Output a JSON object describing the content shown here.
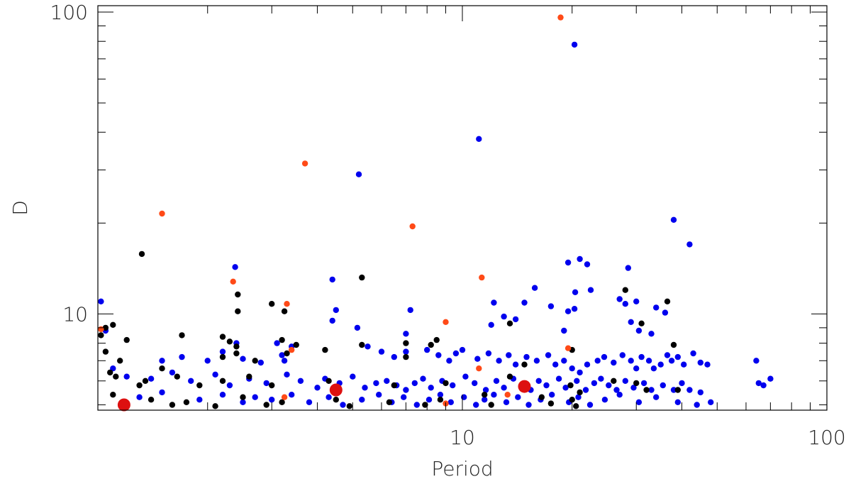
{
  "chart_data": {
    "type": "scatter",
    "title": "",
    "xlabel": "Period",
    "ylabel": "D",
    "xscale": "log",
    "yscale": "log",
    "xlim": [
      1,
      100
    ],
    "ylim": [
      4.8,
      105
    ],
    "x_ticks": [
      {
        "value": 10,
        "label": "10"
      },
      {
        "value": 100,
        "label": "100"
      }
    ],
    "y_ticks": [
      {
        "value": 10,
        "label": "10"
      },
      {
        "value": 100,
        "label": "100"
      }
    ],
    "grid": false,
    "legend": "none",
    "series": [
      {
        "color": "#0000ee",
        "marker_size": "small",
        "points": [
          [
            20.3,
            78.0
          ],
          [
            11.1,
            38.0
          ],
          [
            5.2,
            29.0
          ],
          [
            38.0,
            20.5
          ],
          [
            42.0,
            17.0
          ],
          [
            19.5,
            14.8
          ],
          [
            21.0,
            15.2
          ],
          [
            22.0,
            14.6
          ],
          [
            28.5,
            14.2
          ],
          [
            2.38,
            14.3
          ],
          [
            4.4,
            13.0
          ],
          [
            15.8,
            12.2
          ],
          [
            20.4,
            11.8
          ],
          [
            22.5,
            12.0
          ],
          [
            27.0,
            11.2
          ],
          [
            30.0,
            11.0
          ],
          [
            28.0,
            10.8
          ],
          [
            34.0,
            10.5
          ],
          [
            12.2,
            10.9
          ],
          [
            14.8,
            10.9
          ],
          [
            4.5,
            10.3
          ],
          [
            7.2,
            10.3
          ],
          [
            17.5,
            10.6
          ],
          [
            19.5,
            10.2
          ],
          [
            20.3,
            10.4
          ],
          [
            36.0,
            10.1
          ],
          [
            1.02,
            11.0
          ],
          [
            13.0,
            9.8
          ],
          [
            14.0,
            9.6
          ],
          [
            12.0,
            9.2
          ],
          [
            4.4,
            9.5
          ],
          [
            5.15,
            9.0
          ],
          [
            7.0,
            8.6
          ],
          [
            19.0,
            8.8
          ],
          [
            29.0,
            9.4
          ],
          [
            30.5,
            8.8
          ],
          [
            33.0,
            8.6
          ],
          [
            1.05,
            8.8
          ],
          [
            2.4,
            8.0
          ],
          [
            3.1,
            8.0
          ],
          [
            3.4,
            7.8
          ],
          [
            3.2,
            7.3
          ],
          [
            3.25,
            7.0
          ],
          [
            2.5,
            7.1
          ],
          [
            2.8,
            6.9
          ],
          [
            2.2,
            7.5
          ],
          [
            1.5,
            7.0
          ],
          [
            1.7,
            7.2
          ],
          [
            2.0,
            7.0
          ],
          [
            5.5,
            7.8
          ],
          [
            6.0,
            7.5
          ],
          [
            6.5,
            7.2
          ],
          [
            7.0,
            7.5
          ],
          [
            8.0,
            7.6
          ],
          [
            8.6,
            7.3
          ],
          [
            9.2,
            7.0
          ],
          [
            9.6,
            7.4
          ],
          [
            10.0,
            7.6
          ],
          [
            11.0,
            7.1
          ],
          [
            11.8,
            7.4
          ],
          [
            12.6,
            7.0
          ],
          [
            13.4,
            7.3
          ],
          [
            14.0,
            6.8
          ],
          [
            15.0,
            7.2
          ],
          [
            16.0,
            7.0
          ],
          [
            17.2,
            7.3
          ],
          [
            18.0,
            6.8
          ],
          [
            19.0,
            7.0
          ],
          [
            20.0,
            6.6
          ],
          [
            21.0,
            6.4
          ],
          [
            22.0,
            6.8
          ],
          [
            23.5,
            7.0
          ],
          [
            24.5,
            7.2
          ],
          [
            26.0,
            6.9
          ],
          [
            27.5,
            7.3
          ],
          [
            29.0,
            7.0
          ],
          [
            30.0,
            6.6
          ],
          [
            31.0,
            7.2
          ],
          [
            32.5,
            7.0
          ],
          [
            33.5,
            6.6
          ],
          [
            35.0,
            6.8
          ],
          [
            36.5,
            7.3
          ],
          [
            37.5,
            7.0
          ],
          [
            39.0,
            7.2
          ],
          [
            40.5,
            6.8
          ],
          [
            43.0,
            7.4
          ],
          [
            45.0,
            6.9
          ],
          [
            47.0,
            6.8
          ],
          [
            64.0,
            7.0
          ],
          [
            1.1,
            6.6
          ],
          [
            1.2,
            6.2
          ],
          [
            1.4,
            6.1
          ],
          [
            1.6,
            6.4
          ],
          [
            1.8,
            6.0
          ],
          [
            2.1,
            6.3
          ],
          [
            2.3,
            5.8
          ],
          [
            2.6,
            6.1
          ],
          [
            2.9,
            5.9
          ],
          [
            3.3,
            6.3
          ],
          [
            3.6,
            6.0
          ],
          [
            4.0,
            5.7
          ],
          [
            4.2,
            6.1
          ],
          [
            4.6,
            5.9
          ],
          [
            5.0,
            6.2
          ],
          [
            5.4,
            5.7
          ],
          [
            5.8,
            5.9
          ],
          [
            6.2,
            6.0
          ],
          [
            6.6,
            5.8
          ],
          [
            7.0,
            5.6
          ],
          [
            7.4,
            5.9
          ],
          [
            7.8,
            6.1
          ],
          [
            8.2,
            5.7
          ],
          [
            8.8,
            6.0
          ],
          [
            9.4,
            5.8
          ],
          [
            10.2,
            6.2
          ],
          [
            10.8,
            5.9
          ],
          [
            11.6,
            5.6
          ],
          [
            12.4,
            6.0
          ],
          [
            13.0,
            5.7
          ],
          [
            13.8,
            6.1
          ],
          [
            14.6,
            5.8
          ],
          [
            15.4,
            5.6
          ],
          [
            16.2,
            6.0
          ],
          [
            17.0,
            5.8
          ],
          [
            18.4,
            6.1
          ],
          [
            19.2,
            5.7
          ],
          [
            20.6,
            6.0
          ],
          [
            21.8,
            5.6
          ],
          [
            23.0,
            5.9
          ],
          [
            24.0,
            6.1
          ],
          [
            25.2,
            5.8
          ],
          [
            26.5,
            5.6
          ],
          [
            28.0,
            6.0
          ],
          [
            29.5,
            5.7
          ],
          [
            31.5,
            5.9
          ],
          [
            33.0,
            5.6
          ],
          [
            35.5,
            5.8
          ],
          [
            38.0,
            5.6
          ],
          [
            40.0,
            5.9
          ],
          [
            42.0,
            5.6
          ],
          [
            45.0,
            5.5
          ],
          [
            65.0,
            5.9
          ],
          [
            67.0,
            5.8
          ],
          [
            70.0,
            6.1
          ],
          [
            1.3,
            5.3
          ],
          [
            1.5,
            5.5
          ],
          [
            1.9,
            5.2
          ],
          [
            2.2,
            5.4
          ],
          [
            2.5,
            5.1
          ],
          [
            2.7,
            5.3
          ],
          [
            3.0,
            5.2
          ],
          [
            3.4,
            5.4
          ],
          [
            3.8,
            5.1
          ],
          [
            4.3,
            5.3
          ],
          [
            4.7,
            5.0
          ],
          [
            5.3,
            5.2
          ],
          [
            5.9,
            5.4
          ],
          [
            6.4,
            5.1
          ],
          [
            6.9,
            5.3
          ],
          [
            7.5,
            5.0
          ],
          [
            8.1,
            5.2
          ],
          [
            8.7,
            5.4
          ],
          [
            9.3,
            5.1
          ],
          [
            10.1,
            5.3
          ],
          [
            10.9,
            5.0
          ],
          [
            11.5,
            5.2
          ],
          [
            12.2,
            5.4
          ],
          [
            13.2,
            5.1
          ],
          [
            14.2,
            5.3
          ],
          [
            15.2,
            5.0
          ],
          [
            16.4,
            5.2
          ],
          [
            17.6,
            5.4
          ],
          [
            19.6,
            5.1
          ],
          [
            20.8,
            5.3
          ],
          [
            22.4,
            5.0
          ],
          [
            24.6,
            5.2
          ],
          [
            27.0,
            5.4
          ],
          [
            30.5,
            5.1
          ],
          [
            34.0,
            5.3
          ],
          [
            39.0,
            5.1
          ],
          [
            44.0,
            5.0
          ],
          [
            48.0,
            5.1
          ]
        ]
      },
      {
        "color": "#000000",
        "marker_size": "small",
        "points": [
          [
            1.32,
            15.8
          ],
          [
            5.3,
            13.2
          ],
          [
            2.42,
            11.6
          ],
          [
            3.0,
            10.8
          ],
          [
            3.25,
            10.2
          ],
          [
            2.42,
            10.2
          ],
          [
            36.5,
            11.0
          ],
          [
            28.0,
            12.0
          ],
          [
            1.05,
            9.0
          ],
          [
            1.1,
            9.2
          ],
          [
            1.2,
            8.2
          ],
          [
            1.7,
            8.5
          ],
          [
            2.2,
            8.4
          ],
          [
            2.3,
            8.1
          ],
          [
            2.4,
            7.8
          ],
          [
            3.2,
            8.2
          ],
          [
            3.5,
            7.9
          ],
          [
            5.3,
            7.9
          ],
          [
            7.0,
            8.0
          ],
          [
            8.2,
            7.9
          ],
          [
            8.5,
            8.2
          ],
          [
            13.5,
            9.3
          ],
          [
            31.0,
            9.3
          ],
          [
            20.0,
            7.6
          ],
          [
            38.0,
            7.9
          ],
          [
            1.02,
            8.5
          ],
          [
            1.05,
            7.5
          ],
          [
            1.15,
            7.0
          ],
          [
            1.5,
            6.6
          ],
          [
            2.2,
            7.2
          ],
          [
            2.4,
            7.4
          ],
          [
            2.7,
            7.0
          ],
          [
            3.3,
            7.4
          ],
          [
            4.2,
            7.6
          ],
          [
            7.0,
            7.2
          ],
          [
            14.8,
            6.8
          ],
          [
            1.08,
            6.4
          ],
          [
            1.12,
            6.2
          ],
          [
            1.3,
            5.8
          ],
          [
            1.35,
            6.0
          ],
          [
            1.65,
            6.2
          ],
          [
            1.9,
            5.8
          ],
          [
            2.2,
            6.0
          ],
          [
            2.6,
            6.2
          ],
          [
            3.0,
            5.8
          ],
          [
            4.3,
            6.0
          ],
          [
            6.5,
            5.8
          ],
          [
            9.0,
            5.9
          ],
          [
            13.5,
            6.2
          ],
          [
            19.8,
            5.8
          ],
          [
            26.0,
            6.0
          ],
          [
            30.0,
            5.9
          ],
          [
            39.0,
            5.6
          ],
          [
            1.1,
            5.4
          ],
          [
            1.4,
            5.2
          ],
          [
            1.75,
            5.1
          ],
          [
            2.5,
            5.3
          ],
          [
            3.2,
            5.1
          ],
          [
            4.5,
            5.2
          ],
          [
            6.3,
            5.1
          ],
          [
            8.7,
            5.2
          ],
          [
            11.5,
            5.4
          ],
          [
            16.5,
            5.3
          ],
          [
            20.0,
            5.2
          ],
          [
            21.0,
            5.5
          ],
          [
            32.0,
            5.6
          ],
          [
            1.6,
            5.0
          ],
          [
            2.1,
            4.95
          ],
          [
            2.9,
            5.0
          ],
          [
            4.9,
            4.95
          ],
          [
            7.9,
            5.0
          ],
          [
            12.0,
            5.0
          ],
          [
            17.5,
            5.05
          ],
          [
            20.5,
            4.95
          ]
        ]
      },
      {
        "color": "#ff4a17",
        "marker_size": "small",
        "points": [
          [
            18.6,
            96.0
          ],
          [
            3.7,
            31.5
          ],
          [
            1.5,
            21.5
          ],
          [
            7.3,
            19.5
          ],
          [
            11.3,
            13.2
          ],
          [
            2.35,
            12.8
          ],
          [
            3.3,
            10.8
          ],
          [
            9.0,
            9.4
          ],
          [
            1.02,
            8.9
          ],
          [
            3.4,
            7.6
          ],
          [
            19.5,
            7.7
          ],
          [
            11.1,
            6.6
          ],
          [
            13.3,
            5.4
          ],
          [
            3.25,
            5.3
          ],
          [
            9.0,
            5.05
          ]
        ]
      },
      {
        "color": "#dd1010",
        "marker_size": "large",
        "points": [
          [
            1.18,
            5.0
          ],
          [
            4.5,
            5.6
          ],
          [
            14.8,
            5.75
          ]
        ]
      }
    ]
  }
}
